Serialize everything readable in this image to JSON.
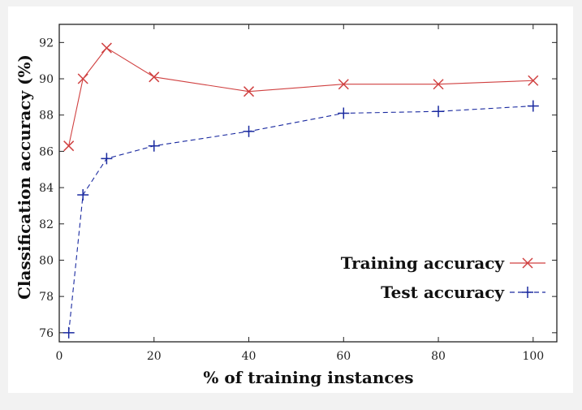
{
  "chart_data": {
    "type": "line",
    "xlabel": "% of training instances",
    "ylabel": "Classification accuracy (%)",
    "xlim": [
      0,
      105
    ],
    "ylim": [
      75.5,
      93
    ],
    "xticks": [
      0,
      20,
      40,
      60,
      80,
      100
    ],
    "yticks": [
      76,
      78,
      80,
      82,
      84,
      86,
      88,
      90,
      92
    ],
    "grid": false,
    "legend_position": "bottom-right",
    "series": [
      {
        "name": "Training accuracy",
        "marker": "x",
        "line": "solid",
        "color": "#d04040",
        "x": [
          2,
          5,
          10,
          20,
          40,
          60,
          80,
          100
        ],
        "y": [
          86.3,
          90.0,
          91.7,
          90.1,
          89.3,
          89.7,
          89.7,
          89.9
        ]
      },
      {
        "name": "Test accuracy",
        "marker": "+",
        "line": "dashed",
        "color": "#1a2aa0",
        "x": [
          2,
          5,
          10,
          20,
          40,
          60,
          80,
          100
        ],
        "y": [
          76.0,
          83.6,
          85.6,
          86.3,
          87.1,
          88.1,
          88.2,
          88.5
        ]
      }
    ]
  }
}
